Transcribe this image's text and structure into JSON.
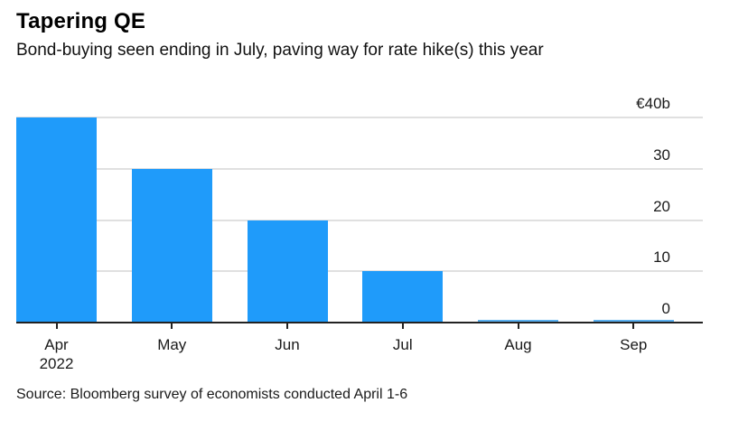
{
  "header": {
    "title": "Tapering QE",
    "subtitle": "Bond-buying seen ending in July, paving way for rate hike(s) this year"
  },
  "source_note": "Source: Bloomberg survey of economists conducted April 1-6",
  "chart_data": {
    "type": "bar",
    "categories": [
      "Apr",
      "May",
      "Jun",
      "Jul",
      "Aug",
      "Sep"
    ],
    "first_category_year": "2022",
    "values": [
      40,
      30,
      20,
      10,
      0,
      0
    ],
    "title": "Tapering QE",
    "subtitle": "Bond-buying seen ending in July, paving way for rate hike(s) this year",
    "xlabel": "",
    "ylabel": "",
    "unit_label": "€40b",
    "yticks": [
      {
        "value": 40,
        "label": "€40b"
      },
      {
        "value": 30,
        "label": "30"
      },
      {
        "value": 20,
        "label": "20"
      },
      {
        "value": 10,
        "label": "10"
      },
      {
        "value": 0,
        "label": "0"
      }
    ],
    "ylim": [
      0,
      40
    ],
    "grid": "horizontal",
    "legend": "none",
    "tick_label_side": "right",
    "colors": {
      "bar": "#1f9bfa",
      "zero_bar": "#5ab0f0",
      "gridline": "#e0e0e0",
      "axis": "#222222",
      "text": "#1a1a1a"
    }
  }
}
